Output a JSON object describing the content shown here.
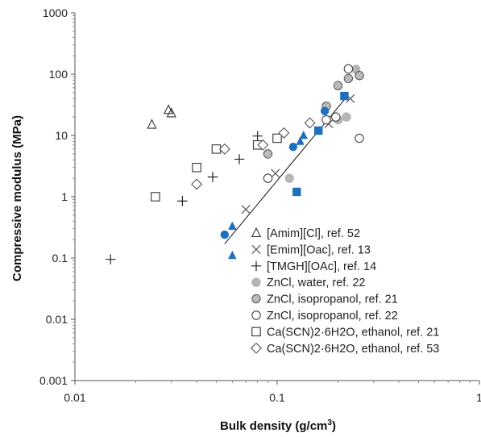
{
  "chart_data": {
    "type": "scatter",
    "xlabel": "Bulk density (g/cm",
    "xlabel_sup": "3",
    "xlabel_end": ")",
    "ylabel": "Compressive modulus (MPa)",
    "x_scale": "log",
    "y_scale": "log",
    "xlim": [
      0.01,
      1
    ],
    "ylim": [
      0.001,
      1000
    ],
    "x_ticks": [
      0.01,
      0.1,
      1
    ],
    "x_tick_labels": [
      "0.01",
      "0.1",
      "1"
    ],
    "y_ticks": [
      0.001,
      0.01,
      0.1,
      1,
      10,
      100,
      1000
    ],
    "y_tick_labels": [
      "0.001",
      "0.01",
      "0.1",
      "1",
      "10",
      "100",
      "1000"
    ],
    "grid": false,
    "legend_position": "bottom-right",
    "series": [
      {
        "name": "[Amim][Cl], ref. 52",
        "marker": "triangle-open",
        "color": "#333333",
        "points": [
          [
            0.024,
            15
          ],
          [
            0.029,
            26
          ],
          [
            0.03,
            23
          ]
        ]
      },
      {
        "name": "[Emim][Oac], ref. 13",
        "marker": "x",
        "color": "#555555",
        "points": [
          [
            0.07,
            0.62
          ],
          [
            0.098,
            2.4
          ],
          [
            0.18,
            15.5
          ],
          [
            0.23,
            40
          ]
        ]
      },
      {
        "name": "[TMGH][OAc], ref. 14",
        "marker": "plus",
        "color": "#222222",
        "points": [
          [
            0.015,
            0.095
          ],
          [
            0.034,
            0.85
          ],
          [
            0.048,
            2.1
          ],
          [
            0.065,
            4.1
          ],
          [
            0.08,
            9.8
          ]
        ]
      },
      {
        "name": "ZnCl, water, ref. 22",
        "marker": "circle-gray",
        "color": "#b5b5b5",
        "points": [
          [
            0.115,
            2.0
          ],
          [
            0.2,
            18
          ],
          [
            0.22,
            20
          ],
          [
            0.245,
            120
          ]
        ]
      },
      {
        "name": "ZnCl, isopropanol, ref. 21",
        "marker": "circle-hatched",
        "color": "#999999",
        "points": [
          [
            0.09,
            5.0
          ],
          [
            0.175,
            30
          ],
          [
            0.2,
            65
          ],
          [
            0.225,
            85
          ],
          [
            0.255,
            95
          ]
        ]
      },
      {
        "name": "ZnCl, isopropanol, ref. 22",
        "marker": "circle-open",
        "color": "#444444",
        "points": [
          [
            0.09,
            2.0
          ],
          [
            0.175,
            18
          ],
          [
            0.195,
            20
          ],
          [
            0.225,
            122
          ],
          [
            0.255,
            9.0
          ]
        ]
      },
      {
        "name": "Ca(SCN)2·6H2O, ethanol, ref. 21",
        "marker": "square-open",
        "color": "#333333",
        "points": [
          [
            0.025,
            1.0
          ],
          [
            0.04,
            3.0
          ],
          [
            0.05,
            6.0
          ],
          [
            0.08,
            7.0
          ],
          [
            0.1,
            9.0
          ]
        ]
      },
      {
        "name": "Ca(SCN)2·6H2O, ethanol, ref. 53",
        "marker": "diamond-open",
        "color": "#555555",
        "points": [
          [
            0.04,
            1.6
          ],
          [
            0.055,
            6.0
          ],
          [
            0.085,
            7.0
          ],
          [
            0.108,
            11.0
          ],
          [
            0.145,
            16.0
          ]
        ]
      },
      {
        "name": "",
        "marker": "circle-blue",
        "color": "#1f6fbf",
        "points": [
          [
            0.055,
            0.24
          ],
          [
            0.12,
            6.5
          ],
          [
            0.172,
            25
          ]
        ]
      },
      {
        "name": "",
        "marker": "triangle-blue",
        "color": "#1f6fbf",
        "points": [
          [
            0.06,
            0.11
          ],
          [
            0.06,
            0.33
          ],
          [
            0.13,
            8.0
          ],
          [
            0.135,
            10.0
          ]
        ]
      },
      {
        "name": "",
        "marker": "square-blue",
        "color": "#1f6fbf",
        "points": [
          [
            0.125,
            1.2
          ],
          [
            0.16,
            12.0
          ],
          [
            0.215,
            44
          ]
        ]
      }
    ],
    "trendline": {
      "color": "#111111",
      "points": [
        [
          0.055,
          0.17
        ],
        [
          0.225,
          46
        ]
      ]
    }
  }
}
